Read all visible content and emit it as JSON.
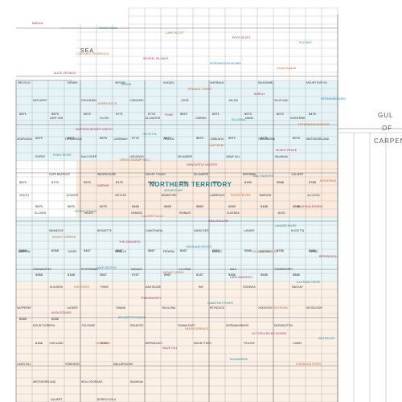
{
  "map": {
    "colors": {
      "background": "#ffffff",
      "grid": "#9a9a9a",
      "cyan_zone": "#cfe9ee",
      "orange_zone": "#f7ddc8",
      "magenta": "#b1336f",
      "teal_text": "#2b8f9f",
      "orange_text": "#c86a2a",
      "territory_text": "#2b7f98"
    },
    "sea_labels": [
      {
        "key": "timor_sea",
        "text": "SEA"
      },
      {
        "key": "gulf_1",
        "text": "GUL"
      },
      {
        "key": "gulf_2",
        "text": "OF"
      },
      {
        "key": "gulf_3",
        "text": "CARPEN"
      }
    ],
    "region_labels": [
      {
        "key": "northern_territory",
        "text": "NORTHERN TERRITORY"
      }
    ],
    "feature_labels": [
      {
        "key": "bathurst",
        "text": "Bathurst"
      },
      {
        "key": "melville",
        "text": "Melville Island"
      },
      {
        "key": "cape_scott",
        "text": "CAPE SCOTT"
      },
      {
        "key": "port_keats",
        "text": "PORT KEATS"
      },
      {
        "key": "fog_bay",
        "text": "FOG BAY"
      },
      {
        "key": "cobourg",
        "text": "COBOURG PENINSULA"
      },
      {
        "key": "wessel",
        "text": "WESSEL ISLANDS"
      },
      {
        "key": "mornington",
        "text": "MORNINGTON ISLAND"
      },
      {
        "key": "groote",
        "text": "Groote Eylandt"
      },
      {
        "key": "alice",
        "text": "ALICE SPRINGS"
      },
      {
        "key": "tanami",
        "text": "TANAMI"
      },
      {
        "key": "tennant",
        "text": "TENNANT CREEK"
      },
      {
        "key": "barkly",
        "text": "BARKLY"
      },
      {
        "key": "hermannsburg",
        "text": "HERMANNSBURG"
      },
      {
        "key": "ayers",
        "text": "AYERS ROCK"
      },
      {
        "key": "finke",
        "text": "FINKE"
      },
      {
        "key": "kulgera",
        "text": "KULGERA"
      },
      {
        "key": "petermann",
        "text": "PETERMANN RANGES"
      },
      {
        "key": "simpson",
        "text": "SIMPSON DESERT NORTH"
      },
      {
        "key": "huckitta",
        "text": "HUCKITTA"
      },
      {
        "key": "napperby",
        "text": "NAPPERBY"
      },
      {
        "key": "mount_peake",
        "text": "MOUNT PEAKE"
      },
      {
        "key": "frew_river",
        "text": "FREW RIVER"
      },
      {
        "key": "green_swamp",
        "text": "GREEN SWAMP WELL"
      },
      {
        "key": "newcastle",
        "text": "NEWCASTLE WATERS"
      },
      {
        "key": "daly_waters",
        "text": "DALY WATERS"
      },
      {
        "key": "katherine",
        "text": "KATHERINE"
      },
      {
        "key": "darwin",
        "text": "DARWIN"
      },
      {
        "key": "arnhem",
        "text": "ARNHEM BAY"
      },
      {
        "key": "roper",
        "text": "ROPER RIVER"
      },
      {
        "key": "bauhinia",
        "text": "BAUHINIA DOWNS"
      },
      {
        "key": "mount_young",
        "text": "MOUNT YOUNG"
      },
      {
        "key": "calvert",
        "text": "CALVERT HILLS"
      },
      {
        "key": "wallhallow",
        "text": "WALLHALLOW"
      },
      {
        "key": "lander",
        "text": "LANDER RIVER"
      },
      {
        "key": "mount_doreen",
        "text": "MOUNT DOREEN"
      },
      {
        "key": "the_granites",
        "text": "THE GRANITES"
      },
      {
        "key": "highland",
        "text": "HIGHLAND ROCKS"
      },
      {
        "key": "mount_solitaire",
        "text": "MOUNT SOLITAIRE"
      },
      {
        "key": "birrindudu",
        "text": "BIRRINDUDU"
      },
      {
        "key": "lake_mackay",
        "text": "LAKE MACKAY"
      },
      {
        "key": "mount_liebig",
        "text": "MOUNT LIEBIG"
      },
      {
        "key": "lake_amadeus",
        "text": "LAKE AMADEUS"
      },
      {
        "key": "illogwa",
        "text": "ILLOGWA CREEK"
      },
      {
        "key": "hay_river",
        "text": "HAY RIVER"
      },
      {
        "key": "tobermorey",
        "text": "TOBERMOREY"
      },
      {
        "key": "sandover",
        "text": "SANDOVER RIVER"
      },
      {
        "key": "elkedra",
        "text": "ELKEDRA"
      },
      {
        "key": "avon_downs",
        "text": "AVON DOWNS"
      },
      {
        "key": "brunette",
        "text": "BRUNETTE DOWNS"
      },
      {
        "key": "helen",
        "text": "HELEN SPRINGS"
      },
      {
        "key": "victoria",
        "text": "VICTORIA RIVER DOWNS"
      },
      {
        "key": "waterloo",
        "text": "WATERLOO"
      },
      {
        "key": "limbunya",
        "text": "LIMBUNYA"
      },
      {
        "key": "wave_hill",
        "text": "WAVE HILL"
      },
      {
        "key": "tanumbirini",
        "text": "TANUMBIRINI"
      },
      {
        "key": "robinson",
        "text": "ROBINSON RIVER"
      }
    ],
    "sheet_numbers": [
      "5571",
      "5572",
      "5573",
      "5671",
      "5672",
      "5673",
      "5771",
      "5772",
      "5773",
      "5871",
      "5872",
      "5873",
      "5971",
      "5972",
      "5973",
      "6071",
      "6072",
      "6073",
      "5470",
      "5570",
      "5670",
      "5770",
      "5870",
      "5970",
      "6070",
      "6170",
      "5469",
      "5569",
      "5669",
      "5769",
      "5869",
      "5969",
      "6069",
      "6169",
      "5468",
      "5568",
      "5668",
      "5768",
      "5868",
      "5968",
      "6068",
      "6168",
      "5467",
      "5567",
      "5667",
      "5767",
      "5867",
      "5967",
      "6067",
      "6167",
      "6267",
      "5466",
      "5566",
      "5666",
      "5766",
      "5866",
      "5966",
      "6066",
      "6166",
      "6266"
    ],
    "sheet_names": [
      "MELVILLE",
      "BATHURST",
      "CAPE VAN",
      "DIEMEN",
      "GOULBURN",
      "ELCHO",
      "WESSEL",
      "COBOURG",
      "ALLIGATOR",
      "KAKADU",
      "GOVE",
      "DARWIN",
      "MARRAKAI",
      "JIM JIM",
      "MANN",
      "MILINGIMBI",
      "BLUE MUD",
      "KATHERINE",
      "MOUNT EVELYN",
      "URAPUNGA",
      "ROPER",
      "CAPE BEATRICE",
      "FERGUSSON",
      "DALY RIVER",
      "WATERHOUSE",
      "LARRIMAH",
      "HODGSON",
      "MOUNT YOUNG",
      "PELLEW",
      "DELAMERE",
      "DELAMERE",
      "LIMBUNYA",
      "WAVE HILL",
      "BIRRIMBA",
      "TANUMBIRINI",
      "BAUHINIA",
      "CALVERT",
      "WESTMORELAND",
      "SOUTH",
      "ELLISON",
      "WINNECKE",
      "HOOKER",
      "HELEN",
      "BRUNETTE",
      "MITCHIE",
      "RANKEN",
      "CAMOOWEAL",
      "BRADFORD",
      "TENNANT",
      "SANDOVER",
      "LAWRENCE",
      "ELKEDRA",
      "LANDER",
      "BARROW",
      "AVON",
      "HUCKITTA",
      "ALCOOTA",
      "BARROW",
      "OODNADATTA",
      "KULGERA",
      "AYERS",
      "PETERMANN",
      "FINKE",
      "MCDILLS",
      "ANDADO",
      "DALHOUSIE",
      "PEDIRKA",
      "ILLOGWA",
      "HAY",
      "MOUNT",
      "HALE",
      "RODINGA",
      "SIMPSON",
      "TOBERMOREY",
      "MACKAY",
      "LIEBIG",
      "NAPPERBY",
      "MOUNT DOREEN",
      "HIGHLAND",
      "LANDER",
      "SOLITAIRE",
      "WISO",
      "TANAMI",
      "GRANITES",
      "BIRRINDUDU",
      "BILLILUNA",
      "TANAMI EAST",
      "MOUNT THEO",
      "REYNOLDS",
      "HERMANNSBURG",
      "PELLEW",
      "HODGSON",
      "MORNINGTON",
      "CAMEL",
      "NICHOLSON",
      "LAWN HILL",
      "WESTMORELAND",
      "CALVERT",
      "ROBINSON",
      "WOLLOGORANG",
      "BORROLOOLA",
      "MALLAPUNYAH",
      "BAUHINIA"
    ]
  }
}
